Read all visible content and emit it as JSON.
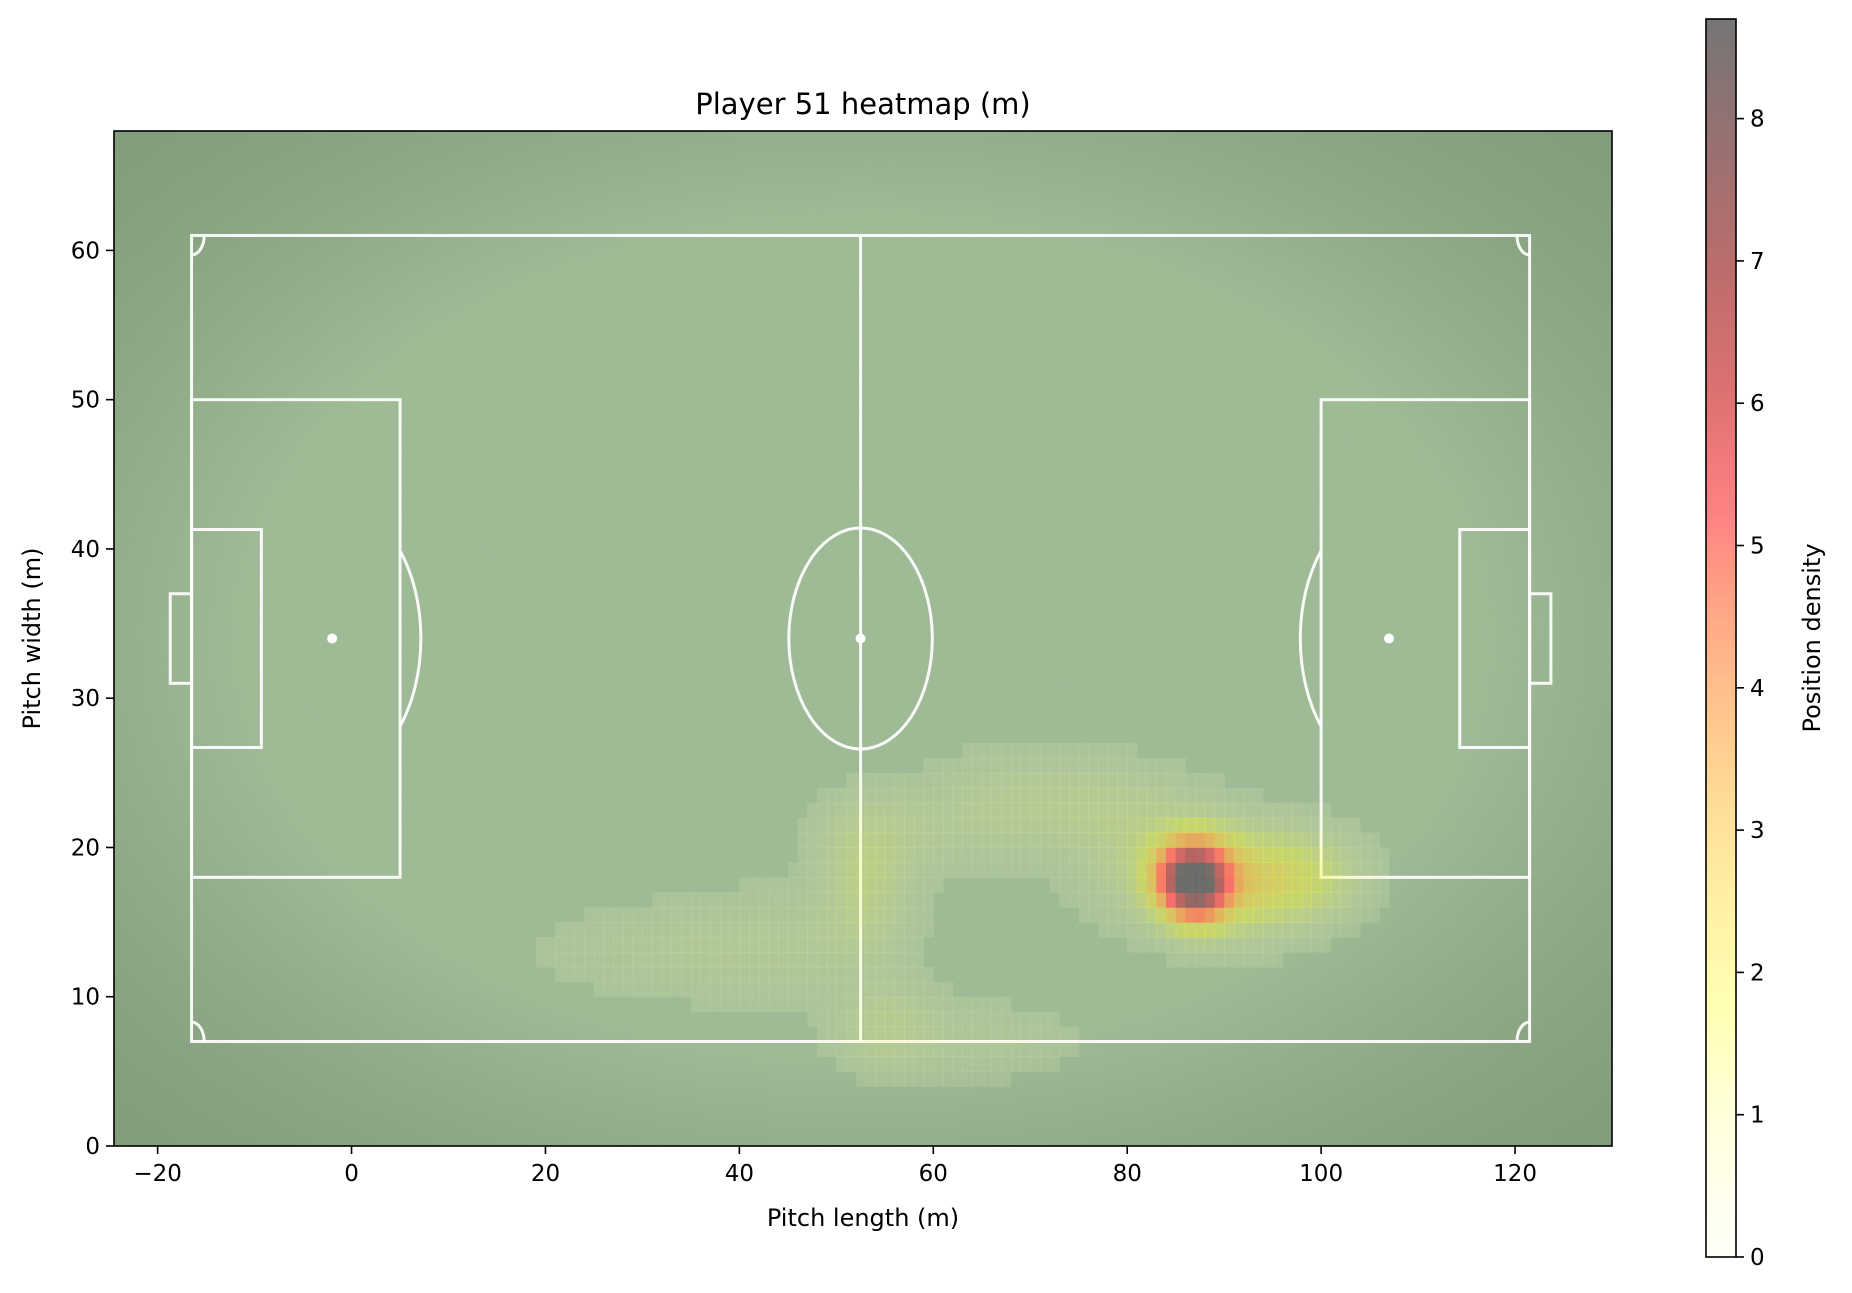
{
  "chart_data": {
    "type": "heatmap",
    "title": "Player 51 heatmap (m)",
    "xlabel": "Pitch length (m)",
    "ylabel": "Pitch width (m)",
    "xlim": [
      -24.5,
      130
    ],
    "ylim": [
      0,
      68
    ],
    "xticks": [
      -20,
      0,
      20,
      40,
      60,
      80,
      100,
      120
    ],
    "yticks": [
      0,
      10,
      20,
      30,
      40,
      50,
      60
    ],
    "pitch": {
      "touchlines_y": [
        7,
        61
      ],
      "goal_lines_x": [
        -16.5,
        121.5
      ],
      "halfway_x": 52.5,
      "centre": [
        52.5,
        34
      ],
      "centre_circle_radius": 7.4,
      "penalty_box_depth": 21.5,
      "penalty_box_y": [
        18,
        50
      ],
      "six_yard_depth": 7.2,
      "six_yard_y": [
        26.7,
        41.3
      ],
      "goal_depth": 2.2,
      "goal_y": [
        31,
        37
      ],
      "penalty_spot_offset": 14.5,
      "surface_color": "#9dbb94",
      "line_color": "#ffffff"
    },
    "hotspots": [
      {
        "x": 87.2,
        "y": 17.8,
        "sx": 2.3,
        "sy": 1.8,
        "weight": 7.6
      },
      {
        "x": 84.5,
        "y": 18.0,
        "sx": 2.0,
        "sy": 1.6,
        "weight": 2.0
      },
      {
        "x": 91.5,
        "y": 17.8,
        "sx": 4.5,
        "sy": 2.3,
        "weight": 2.2
      },
      {
        "x": 98.5,
        "y": 18.0,
        "sx": 4.0,
        "sy": 2.0,
        "weight": 1.3
      },
      {
        "x": 82.0,
        "y": 19.5,
        "sx": 5.0,
        "sy": 3.0,
        "weight": 0.8
      },
      {
        "x": 75.0,
        "y": 23.0,
        "sx": 6.0,
        "sy": 2.0,
        "weight": 0.55
      },
      {
        "x": 66.0,
        "y": 22.5,
        "sx": 5.0,
        "sy": 2.5,
        "weight": 0.45
      },
      {
        "x": 53.0,
        "y": 17.5,
        "sx": 3.0,
        "sy": 3.0,
        "weight": 0.9
      },
      {
        "x": 55.0,
        "y": 21.0,
        "sx": 5.0,
        "sy": 2.0,
        "weight": 0.5
      },
      {
        "x": 44.0,
        "y": 13.5,
        "sx": 8.0,
        "sy": 2.5,
        "weight": 0.45
      },
      {
        "x": 30.0,
        "y": 13.0,
        "sx": 8.0,
        "sy": 2.0,
        "weight": 0.3
      },
      {
        "x": 55.0,
        "y": 8.0,
        "sx": 3.5,
        "sy": 2.0,
        "weight": 0.7
      },
      {
        "x": 65.0,
        "y": 7.0,
        "sx": 7.0,
        "sy": 1.8,
        "weight": 0.35
      }
    ],
    "grid_resolution_m": 1,
    "colorbar": {
      "label": "Position density",
      "range": [
        0,
        8.7
      ],
      "ticks": [
        0,
        1,
        2,
        3,
        4,
        5,
        6,
        7,
        8
      ],
      "colormap": [
        "#ffffcc",
        "#ffff33",
        "#ffb347",
        "#ff6666",
        "#b35c5c",
        "#666666"
      ],
      "alpha": 0.9
    },
    "grid": false
  }
}
